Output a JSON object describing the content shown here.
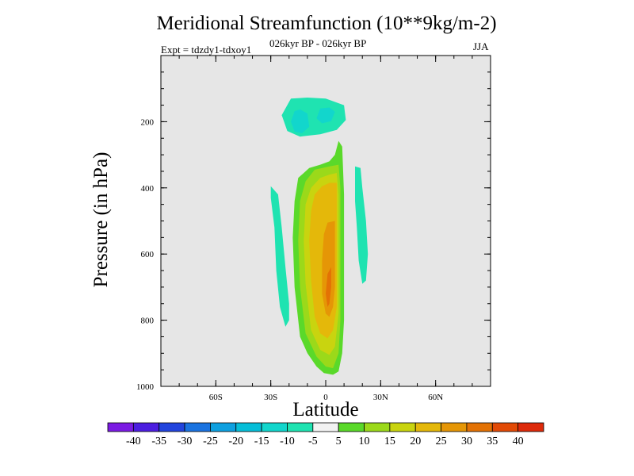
{
  "chart_data": {
    "type": "heatmap",
    "title": "Meridional Streamfunction (10**9kg/m-2)",
    "subtitle": "026kyr BP - 026kyr BP",
    "left_label": "Expt = tdzdy1-tdxoy1",
    "right_label": "JJA",
    "xlabel": "Latitude",
    "ylabel": "Pressure (in hPa)",
    "xlim": [
      -90,
      90
    ],
    "ylim": [
      1000,
      0
    ],
    "x_ticks": [
      {
        "value": -60,
        "label": "60S"
      },
      {
        "value": -30,
        "label": "30S"
      },
      {
        "value": 0,
        "label": "0"
      },
      {
        "value": 30,
        "label": "30N"
      },
      {
        "value": 60,
        "label": "60N"
      }
    ],
    "y_ticks": [
      {
        "value": 200,
        "label": "200"
      },
      {
        "value": 400,
        "label": "400"
      },
      {
        "value": 600,
        "label": "600"
      },
      {
        "value": 800,
        "label": "800"
      },
      {
        "value": 1000,
        "label": "1000"
      }
    ],
    "background_color": "#e6e6e6",
    "colorbar": {
      "labels": [
        "-40",
        "-35",
        "-30",
        "-25",
        "-20",
        "-15",
        "-10",
        "-5",
        "5",
        "10",
        "15",
        "20",
        "25",
        "30",
        "35",
        "40"
      ],
      "colors": [
        "#7b1be3",
        "#4c1ee0",
        "#2244dd",
        "#1a73e0",
        "#0ea0e0",
        "#06bed8",
        "#12d6cc",
        "#1fe3b1",
        "#f2f2f2",
        "#5ad92a",
        "#9bd91a",
        "#c9d40f",
        "#e4b80a",
        "#e59606",
        "#e37204",
        "#e24a06",
        "#dd2a0a"
      ]
    },
    "contour_regions": [
      {
        "level": "-10",
        "color": "#1fe3b1",
        "points": [
          [
            -19,
            130
          ],
          [
            -10,
            127
          ],
          [
            0,
            130
          ],
          [
            10,
            150
          ],
          [
            11,
            195
          ],
          [
            6,
            225
          ],
          [
            -3,
            238
          ],
          [
            -14,
            245
          ],
          [
            -21,
            228
          ],
          [
            -24,
            180
          ]
        ]
      },
      {
        "level": "-15",
        "color": "#12d6cc",
        "points": [
          [
            -17,
            168
          ],
          [
            -14,
            163
          ],
          [
            -10,
            175
          ],
          [
            -9,
            215
          ],
          [
            -13,
            235
          ],
          [
            -17,
            230
          ],
          [
            -19,
            200
          ]
        ]
      },
      {
        "level": "-15",
        "color": "#12d6cc",
        "points": [
          [
            -3,
            160
          ],
          [
            2,
            157
          ],
          [
            5,
            170
          ],
          [
            3,
            198
          ],
          [
            -2,
            205
          ],
          [
            -5,
            190
          ]
        ]
      },
      {
        "level": "-10",
        "color": "#1fe3b1",
        "points": [
          [
            -30,
            395
          ],
          [
            -26,
            420
          ],
          [
            -24,
            520
          ],
          [
            -22,
            640
          ],
          [
            -20,
            750
          ],
          [
            -20,
            800
          ],
          [
            -22,
            820
          ],
          [
            -25,
            760
          ],
          [
            -27,
            650
          ],
          [
            -28,
            520
          ],
          [
            -30,
            430
          ]
        ]
      },
      {
        "level": "-10",
        "color": "#1fe3b1",
        "points": [
          [
            16,
            335
          ],
          [
            19,
            340
          ],
          [
            20,
            400
          ],
          [
            22,
            500
          ],
          [
            23,
            600
          ],
          [
            22,
            680
          ],
          [
            20,
            690
          ],
          [
            18,
            620
          ],
          [
            17,
            520
          ],
          [
            16,
            440
          ]
        ]
      },
      {
        "level": "10",
        "color": "#5ad92a",
        "points": [
          [
            7,
            258
          ],
          [
            9,
            275
          ],
          [
            10,
            420
          ],
          [
            10,
            600
          ],
          [
            10,
            800
          ],
          [
            9,
            900
          ],
          [
            7,
            955
          ],
          [
            4,
            965
          ],
          [
            -1,
            960
          ],
          [
            -5,
            940
          ],
          [
            -10,
            900
          ],
          [
            -14,
            850
          ],
          [
            -17,
            700
          ],
          [
            -18,
            550
          ],
          [
            -17,
            440
          ],
          [
            -15,
            370
          ],
          [
            -9,
            340
          ],
          [
            -3,
            330
          ],
          [
            2,
            320
          ],
          [
            5,
            300
          ]
        ]
      },
      {
        "level": "15",
        "color": "#9bd91a",
        "points": [
          [
            7,
            330
          ],
          [
            8,
            400
          ],
          [
            8,
            600
          ],
          [
            8,
            800
          ],
          [
            7,
            900
          ],
          [
            4,
            945
          ],
          [
            0,
            940
          ],
          [
            -5,
            910
          ],
          [
            -11,
            840
          ],
          [
            -14,
            700
          ],
          [
            -15,
            560
          ],
          [
            -14,
            440
          ],
          [
            -11,
            380
          ],
          [
            -6,
            345
          ],
          [
            2,
            335
          ]
        ]
      },
      {
        "level": "20",
        "color": "#c9d40f",
        "points": [
          [
            6,
            355
          ],
          [
            7,
            420
          ],
          [
            7,
            600
          ],
          [
            7,
            780
          ],
          [
            5,
            880
          ],
          [
            2,
            905
          ],
          [
            -3,
            890
          ],
          [
            -8,
            830
          ],
          [
            -11,
            690
          ],
          [
            -12,
            560
          ],
          [
            -11,
            450
          ],
          [
            -8,
            400
          ],
          [
            -3,
            370
          ],
          [
            2,
            360
          ]
        ]
      },
      {
        "level": "25",
        "color": "#e4b80a",
        "points": [
          [
            6,
            385
          ],
          [
            6,
            450
          ],
          [
            6,
            620
          ],
          [
            6,
            760
          ],
          [
            4,
            830
          ],
          [
            1,
            855
          ],
          [
            -3,
            840
          ],
          [
            -6,
            790
          ],
          [
            -8,
            680
          ],
          [
            -9,
            560
          ],
          [
            -8,
            470
          ],
          [
            -6,
            420
          ],
          [
            -2,
            395
          ],
          [
            2,
            385
          ]
        ]
      },
      {
        "level": "30",
        "color": "#e59606",
        "points": [
          [
            5,
            500
          ],
          [
            5,
            600
          ],
          [
            5,
            700
          ],
          [
            4,
            760
          ],
          [
            2,
            790
          ],
          [
            0,
            780
          ],
          [
            -2,
            720
          ],
          [
            -2,
            620
          ],
          [
            -1,
            540
          ],
          [
            1,
            505
          ]
        ]
      },
      {
        "level": "35",
        "color": "#e37204",
        "points": [
          [
            3,
            640
          ],
          [
            3,
            700
          ],
          [
            2,
            750
          ],
          [
            1,
            760
          ],
          [
            0,
            720
          ],
          [
            1,
            660
          ]
        ]
      }
    ]
  }
}
